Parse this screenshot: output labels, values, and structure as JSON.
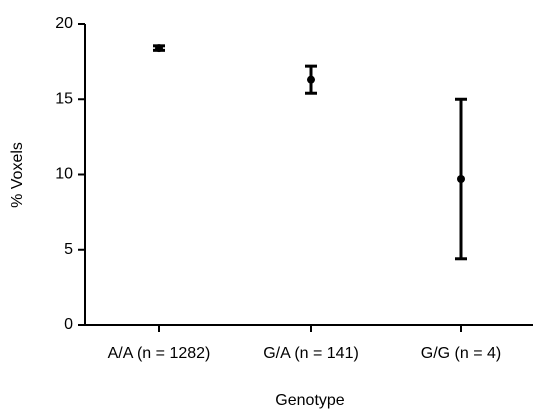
{
  "chart_data": {
    "type": "errorbar",
    "x_label": "Genotype",
    "y_label": "% Voxels",
    "categories": [
      "A/A (n = 1282)",
      "G/A (n = 141)",
      "G/G (n = 4)"
    ],
    "values": [
      18.4,
      16.3,
      9.7
    ],
    "errors": [
      0.15,
      0.9,
      5.3
    ],
    "color": "#000000",
    "ylim": [
      0,
      20
    ],
    "yticks": [
      0,
      5,
      10,
      15,
      20
    ],
    "grid": false
  }
}
